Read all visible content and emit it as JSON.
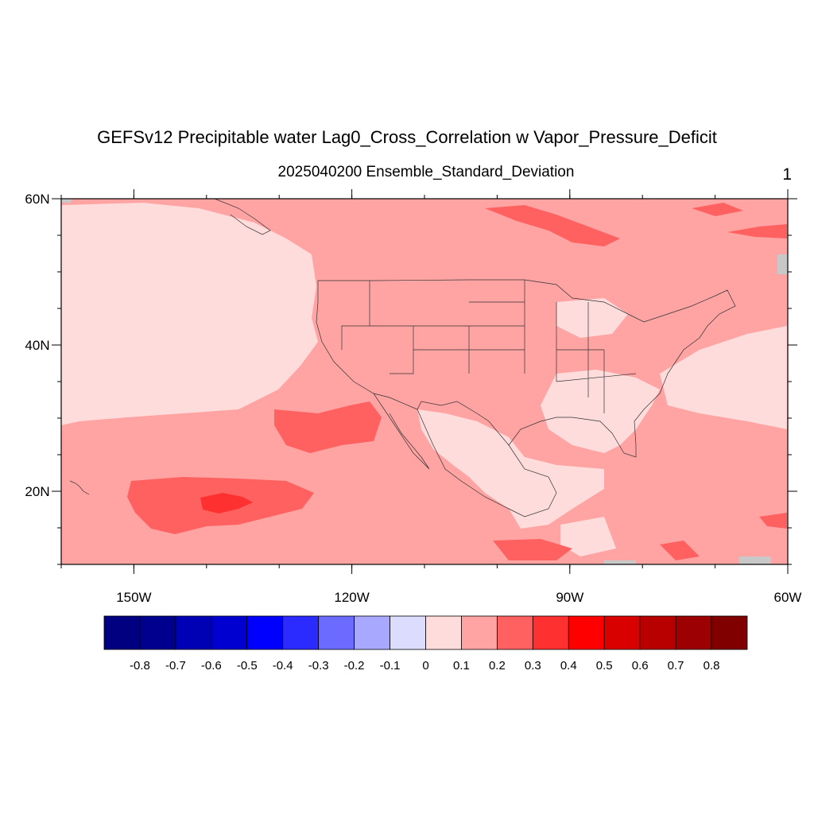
{
  "title": "GEFSv12 Precipitable water Lag0_Cross_Correlation w Vapor_Pressure_Deficit",
  "subtitle": "2025040200 Ensemble_Standard_Deviation",
  "corner_label": "1",
  "map": {
    "lon_range": [
      -160,
      -60
    ],
    "lat_range": [
      10,
      60
    ],
    "lon_ticks": [
      {
        "value": -150,
        "label": "150W"
      },
      {
        "value": -120,
        "label": "120W"
      },
      {
        "value": -90,
        "label": "90W"
      },
      {
        "value": -60,
        "label": "60W"
      }
    ],
    "lat_ticks": [
      {
        "value": 60,
        "label": "60N"
      },
      {
        "value": 40,
        "label": "40N"
      },
      {
        "value": 20,
        "label": "20N"
      }
    ],
    "background_level_color": "#ffa3a3"
  },
  "colorbar": {
    "colors": [
      "#000080",
      "#00008f",
      "#0000b5",
      "#0000d1",
      "#0000ff",
      "#2b2bff",
      "#6b6bff",
      "#a8a8ff",
      "#dcdcff",
      "#ffdcdc",
      "#ffa3a3",
      "#ff6161",
      "#ff3030",
      "#ff0000",
      "#d90000",
      "#b80000",
      "#9c0000",
      "#800000"
    ],
    "labels": [
      "-0.8",
      "-0.7",
      "-0.6",
      "-0.5",
      "-0.4",
      "-0.3",
      "-0.2",
      "-0.1",
      "0",
      "0.1",
      "0.2",
      "0.3",
      "0.4",
      "0.5",
      "0.6",
      "0.7",
      "0.8"
    ]
  }
}
